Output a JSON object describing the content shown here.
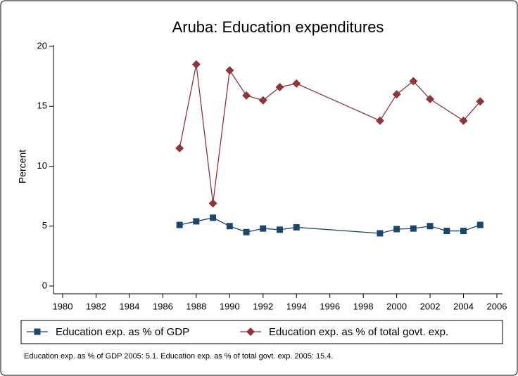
{
  "chart_data": {
    "type": "line",
    "title": "Aruba: Education expenditures",
    "y_label": "Percent",
    "note": "Education exp. as % of GDP 2005: 5.1. Education exp. as % of total govt. exp. 2005: 15.4.",
    "xlim": [
      1980,
      2006
    ],
    "xticks": [
      1980,
      1982,
      1984,
      1986,
      1988,
      1990,
      1992,
      1994,
      1996,
      1998,
      2000,
      2002,
      2004,
      2006
    ],
    "ylim": [
      0,
      20
    ],
    "yticks": [
      0,
      5,
      10,
      15,
      20
    ],
    "grid": false,
    "legend": "bottom",
    "series": [
      {
        "name": "Education exp. as % of GDP",
        "color": "#1a476f",
        "marker": "square",
        "x": [
          1987,
          1988,
          1989,
          1990,
          1991,
          1992,
          1993,
          1994,
          1999,
          2000,
          2001,
          2002,
          2003,
          2004,
          2005
        ],
        "values": [
          5.1,
          5.4,
          5.7,
          5.0,
          4.5,
          4.8,
          4.7,
          4.9,
          4.4,
          4.75,
          4.8,
          5.0,
          4.6,
          4.6,
          5.1
        ]
      },
      {
        "name": "Education exp. as % of total govt. exp.",
        "color": "#90353b",
        "marker": "diamond",
        "x": [
          1987,
          1988,
          1989,
          1990,
          1991,
          1992,
          1993,
          1994,
          1999,
          2000,
          2001,
          2002,
          2004,
          2005
        ],
        "values": [
          11.5,
          18.5,
          6.9,
          18.0,
          15.9,
          15.5,
          16.6,
          16.9,
          13.8,
          16.0,
          17.1,
          15.6,
          13.8,
          15.4
        ]
      }
    ]
  }
}
